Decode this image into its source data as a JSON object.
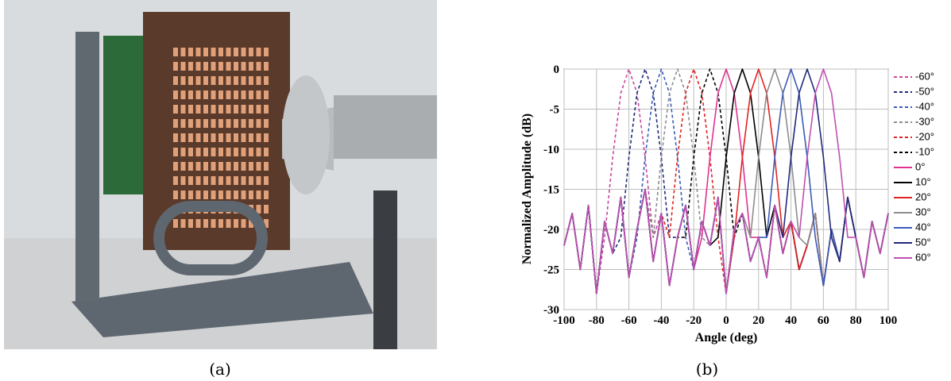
{
  "captions": [
    "(a)",
    "(b)"
  ],
  "chart_data": {
    "type": "line",
    "x_label": "Angle (deg)",
    "y_label": "Normalized Amplitude (dB)",
    "x": [
      -100,
      -95,
      -90,
      -85,
      -80,
      -75,
      -70,
      -65,
      -60,
      -55,
      -50,
      -45,
      -40,
      -35,
      -30,
      -25,
      -20,
      -15,
      -10,
      -5,
      0,
      5,
      10,
      15,
      20,
      25,
      30,
      35,
      40,
      45,
      50,
      55,
      60,
      65,
      70,
      75,
      80,
      85,
      90,
      95,
      100
    ],
    "xlim": [
      -100,
      100
    ],
    "ylim": [
      -30,
      0
    ],
    "xticks": [
      -100,
      -80,
      -60,
      -40,
      -20,
      0,
      20,
      40,
      60,
      80,
      100
    ],
    "yticks": [
      0,
      -5,
      -10,
      -15,
      -20,
      -25,
      -30
    ],
    "grid": true,
    "series": [
      {
        "name": "-60°",
        "color": "#c8479e",
        "line_style": "dashed",
        "values": [
          -22,
          -18,
          -25,
          -17,
          -28,
          -21,
          -11,
          -3,
          0,
          -3,
          -11,
          -21,
          -18,
          -27,
          -21,
          -17,
          -25,
          -19,
          -22,
          -16,
          -28,
          -20,
          -18,
          -24,
          -21,
          -26,
          -17,
          -23,
          -19,
          -25,
          -22,
          -18,
          -27,
          -20,
          -24,
          -16,
          -21,
          -26,
          -19,
          -23,
          -18
        ]
      },
      {
        "name": "-50°",
        "color": "#1f2a7a",
        "line_style": "dashed",
        "values": [
          -22,
          -18,
          -25,
          -17,
          -28,
          -19,
          -23,
          -21,
          -11,
          -3,
          0,
          -3,
          -11,
          -21,
          -21,
          -17,
          -25,
          -19,
          -22,
          -16,
          -28,
          -20,
          -18,
          -24,
          -21,
          -26,
          -17,
          -23,
          -19,
          -25,
          -22,
          -18,
          -27,
          -20,
          -24,
          -16,
          -21,
          -26,
          -19,
          -23,
          -18
        ]
      },
      {
        "name": "-40°",
        "color": "#3a5bb8",
        "line_style": "dashed",
        "values": [
          -22,
          -18,
          -25,
          -17,
          -28,
          -19,
          -23,
          -16,
          -26,
          -21,
          -11,
          -3,
          0,
          -3,
          -11,
          -21,
          -25,
          -19,
          -22,
          -16,
          -28,
          -20,
          -18,
          -24,
          -21,
          -26,
          -17,
          -23,
          -19,
          -25,
          -22,
          -18,
          -27,
          -20,
          -24,
          -16,
          -21,
          -26,
          -19,
          -23,
          -18
        ]
      },
      {
        "name": "-30°",
        "color": "#8c8c8c",
        "line_style": "dashed",
        "values": [
          -22,
          -18,
          -25,
          -17,
          -28,
          -19,
          -23,
          -16,
          -26,
          -20,
          -15,
          -21,
          -11,
          -3,
          0,
          -3,
          -11,
          -21,
          -22,
          -16,
          -28,
          -20,
          -18,
          -24,
          -21,
          -26,
          -17,
          -23,
          -19,
          -25,
          -22,
          -18,
          -27,
          -20,
          -24,
          -16,
          -21,
          -26,
          -19,
          -23,
          -18
        ]
      },
      {
        "name": "-20°",
        "color": "#e02424",
        "line_style": "dashed",
        "values": [
          -22,
          -18,
          -25,
          -17,
          -28,
          -19,
          -23,
          -16,
          -26,
          -20,
          -15,
          -24,
          -18,
          -21,
          -11,
          -3,
          0,
          -3,
          -11,
          -21,
          -28,
          -20,
          -18,
          -24,
          -21,
          -26,
          -17,
          -23,
          -19,
          -25,
          -22,
          -18,
          -27,
          -20,
          -24,
          -16,
          -21,
          -26,
          -19,
          -23,
          -18
        ]
      },
      {
        "name": "-10°",
        "color": "#000000",
        "line_style": "dashed",
        "values": [
          -22,
          -18,
          -25,
          -17,
          -28,
          -19,
          -23,
          -16,
          -26,
          -20,
          -15,
          -24,
          -18,
          -27,
          -21,
          -21,
          -11,
          -3,
          0,
          -3,
          -11,
          -21,
          -18,
          -24,
          -21,
          -26,
          -17,
          -23,
          -19,
          -25,
          -22,
          -18,
          -27,
          -20,
          -24,
          -16,
          -21,
          -26,
          -19,
          -23,
          -18
        ]
      },
      {
        "name": "0°",
        "color": "#e0338f",
        "line_style": "solid",
        "values": [
          -22,
          -18,
          -25,
          -17,
          -28,
          -19,
          -23,
          -16,
          -26,
          -20,
          -15,
          -24,
          -18,
          -27,
          -21,
          -17,
          -25,
          -21,
          -11,
          -3,
          0,
          -3,
          -11,
          -21,
          -21,
          -26,
          -17,
          -23,
          -19,
          -25,
          -22,
          -18,
          -27,
          -20,
          -24,
          -16,
          -21,
          -26,
          -19,
          -23,
          -18
        ]
      },
      {
        "name": "10°",
        "color": "#000000",
        "line_style": "solid",
        "values": [
          -22,
          -18,
          -25,
          -17,
          -28,
          -19,
          -23,
          -16,
          -26,
          -20,
          -15,
          -24,
          -18,
          -27,
          -21,
          -17,
          -25,
          -19,
          -22,
          -21,
          -11,
          -3,
          0,
          -3,
          -11,
          -21,
          -17,
          -23,
          -19,
          -25,
          -22,
          -18,
          -27,
          -20,
          -24,
          -16,
          -21,
          -26,
          -19,
          -23,
          -18
        ]
      },
      {
        "name": "20°",
        "color": "#e02424",
        "line_style": "solid",
        "values": [
          -22,
          -18,
          -25,
          -17,
          -28,
          -19,
          -23,
          -16,
          -26,
          -20,
          -15,
          -24,
          -18,
          -27,
          -21,
          -17,
          -25,
          -19,
          -22,
          -16,
          -28,
          -21,
          -11,
          -3,
          0,
          -3,
          -11,
          -21,
          -19,
          -25,
          -22,
          -18,
          -27,
          -20,
          -24,
          -16,
          -21,
          -26,
          -19,
          -23,
          -18
        ]
      },
      {
        "name": "30°",
        "color": "#8c8c8c",
        "line_style": "solid",
        "values": [
          -22,
          -18,
          -25,
          -17,
          -28,
          -19,
          -23,
          -16,
          -26,
          -20,
          -15,
          -24,
          -18,
          -27,
          -21,
          -17,
          -25,
          -19,
          -22,
          -16,
          -28,
          -20,
          -18,
          -21,
          -11,
          -3,
          0,
          -3,
          -11,
          -21,
          -22,
          -18,
          -27,
          -20,
          -24,
          -16,
          -21,
          -26,
          -19,
          -23,
          -18
        ]
      },
      {
        "name": "40°",
        "color": "#3a5bb8",
        "line_style": "solid",
        "values": [
          -22,
          -18,
          -25,
          -17,
          -28,
          -19,
          -23,
          -16,
          -26,
          -20,
          -15,
          -24,
          -18,
          -27,
          -21,
          -17,
          -25,
          -19,
          -22,
          -16,
          -28,
          -20,
          -18,
          -24,
          -21,
          -21,
          -11,
          -3,
          0,
          -3,
          -11,
          -21,
          -27,
          -20,
          -24,
          -16,
          -21,
          -26,
          -19,
          -23,
          -18
        ]
      },
      {
        "name": "50°",
        "color": "#1f2a7a",
        "line_style": "solid",
        "values": [
          -22,
          -18,
          -25,
          -17,
          -28,
          -19,
          -23,
          -16,
          -26,
          -20,
          -15,
          -24,
          -18,
          -27,
          -21,
          -17,
          -25,
          -19,
          -22,
          -16,
          -28,
          -20,
          -18,
          -24,
          -21,
          -26,
          -17,
          -21,
          -11,
          -3,
          0,
          -3,
          -11,
          -21,
          -24,
          -16,
          -21,
          -26,
          -19,
          -23,
          -18
        ]
      },
      {
        "name": "60°",
        "color": "#c050b0",
        "line_style": "solid",
        "values": [
          -22,
          -18,
          -25,
          -17,
          -28,
          -19,
          -23,
          -16,
          -26,
          -20,
          -15,
          -24,
          -18,
          -27,
          -21,
          -17,
          -25,
          -19,
          -22,
          -16,
          -28,
          -20,
          -18,
          -24,
          -21,
          -26,
          -17,
          -23,
          -19,
          -21,
          -11,
          -3,
          0,
          -3,
          -11,
          -21,
          -21,
          -26,
          -19,
          -23,
          -18
        ]
      }
    ]
  }
}
